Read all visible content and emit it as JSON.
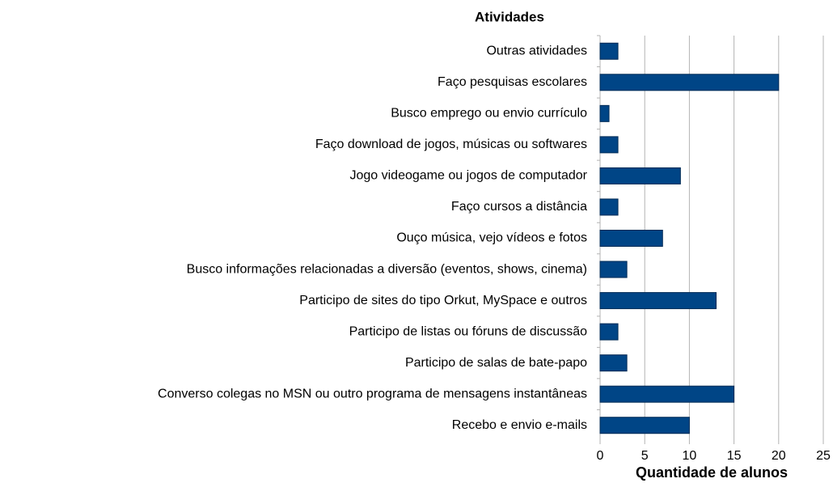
{
  "chart_data": {
    "type": "bar",
    "orientation": "horizontal",
    "title": "Atividades",
    "xlabel": "Quantidade de alunos",
    "categories": [
      "Outras atividades",
      "Faço pesquisas escolares",
      "Busco emprego ou envio currículo",
      "Faço download de jogos, músicas ou softwares",
      "Jogo videogame ou jogos de computador",
      "Faço cursos a distância",
      "Ouço música, vejo vídeos e fotos",
      "Busco informações relacionadas a diversão (eventos, shows, cinema)",
      "Participo de sites do tipo Orkut, MySpace e outros",
      "Participo de listas ou fóruns de discussão",
      "Participo de salas de bate-papo",
      "Converso colegas no MSN ou outro programa de mensagens instantâneas",
      "Recebo e envio e-mails"
    ],
    "values": [
      2,
      20,
      1,
      2,
      9,
      2,
      7,
      3,
      13,
      2,
      3,
      15,
      10
    ],
    "color": "#004586",
    "xlim": [
      0,
      25
    ],
    "xticks": [
      0,
      5,
      10,
      15,
      20,
      25
    ],
    "grid": true
  }
}
